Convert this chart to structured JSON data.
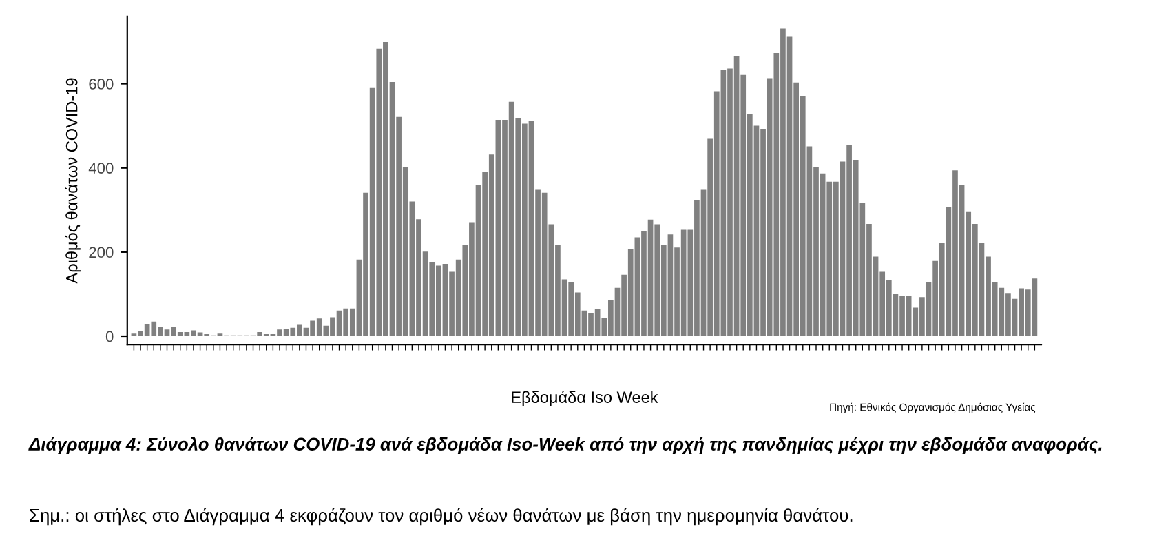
{
  "chart_data": {
    "type": "bar",
    "xlabel": "Εβδομάδα Iso Week",
    "ylabel": "Αριθμός θανάτων COVID-19",
    "color": "#808080",
    "categories": [
      null,
      null,
      null,
      null,
      null,
      null,
      null,
      null,
      null,
      null,
      null,
      null,
      null,
      null,
      null,
      null,
      null,
      null,
      null,
      null,
      null,
      null,
      null,
      null,
      null,
      null,
      null,
      null,
      null,
      null,
      null,
      null,
      null,
      null,
      null,
      null,
      null,
      null,
      null,
      null,
      null,
      null,
      null,
      null,
      null,
      null,
      null,
      null,
      null,
      null,
      null,
      null,
      null,
      null,
      null,
      null,
      null,
      null,
      null,
      null,
      null,
      null,
      null,
      null,
      null,
      null,
      null,
      null,
      null,
      null,
      null,
      null,
      null,
      null,
      null,
      null,
      null,
      null,
      null,
      null,
      null,
      null,
      null,
      null,
      null,
      null,
      null,
      null,
      null,
      null,
      null,
      null,
      null,
      null,
      null,
      null,
      null,
      null,
      null,
      null,
      null,
      null,
      null,
      null,
      null,
      null,
      null,
      null,
      null,
      null,
      null,
      null,
      null,
      null,
      null,
      null,
      null,
      null,
      null,
      null,
      null,
      null,
      null,
      null,
      null,
      null,
      null,
      null,
      null,
      null,
      null,
      null,
      null,
      null,
      null,
      null,
      null
    ],
    "values": [
      6,
      13,
      28,
      35,
      23,
      16,
      23,
      10,
      10,
      14,
      9,
      5,
      2,
      6,
      2,
      2,
      2,
      2,
      2,
      10,
      5,
      5,
      16,
      17,
      20,
      27,
      20,
      37,
      42,
      25,
      45,
      61,
      66,
      66,
      182,
      341,
      590,
      683,
      699,
      604,
      521,
      402,
      320,
      278,
      201,
      175,
      168,
      172,
      153,
      182,
      217,
      271,
      359,
      391,
      432,
      514,
      514,
      557,
      519,
      505,
      511,
      348,
      341,
      266,
      217,
      135,
      128,
      104,
      61,
      54,
      65,
      44,
      86,
      115,
      146,
      208,
      235,
      249,
      277,
      266,
      217,
      242,
      211,
      253,
      253,
      324,
      348,
      469,
      582,
      632,
      636,
      666,
      621,
      529,
      500,
      493,
      613,
      673,
      731,
      713,
      603,
      571,
      451,
      402,
      387,
      367,
      367,
      415,
      455,
      419,
      317,
      267,
      189,
      153,
      133,
      100,
      95,
      96,
      68,
      93,
      128,
      179,
      221,
      307,
      394,
      359,
      295,
      267,
      221,
      189,
      129,
      115,
      101,
      89,
      114,
      111,
      137
    ],
    "ylim": [
      -20,
      760
    ],
    "yticks": [
      0,
      200,
      400,
      600
    ],
    "grid": false,
    "annotations": [
      "Πηγή: Εθνικός Οργανισμός Δημόσιας Υγείας",
      "Διάγραμμα 4: Σύνολο θανάτων COVID-19 ανά εβδομάδα Iso-Week από την αρχή της πανδημίας μέχρι την εβδομάδα αναφοράς.",
      "Σημ.: οι στήλες στο Διάγραμμα 4 εκφράζουν τον αριθμό νέων θανάτων με βάση την ημερομηνία θανάτου."
    ]
  }
}
